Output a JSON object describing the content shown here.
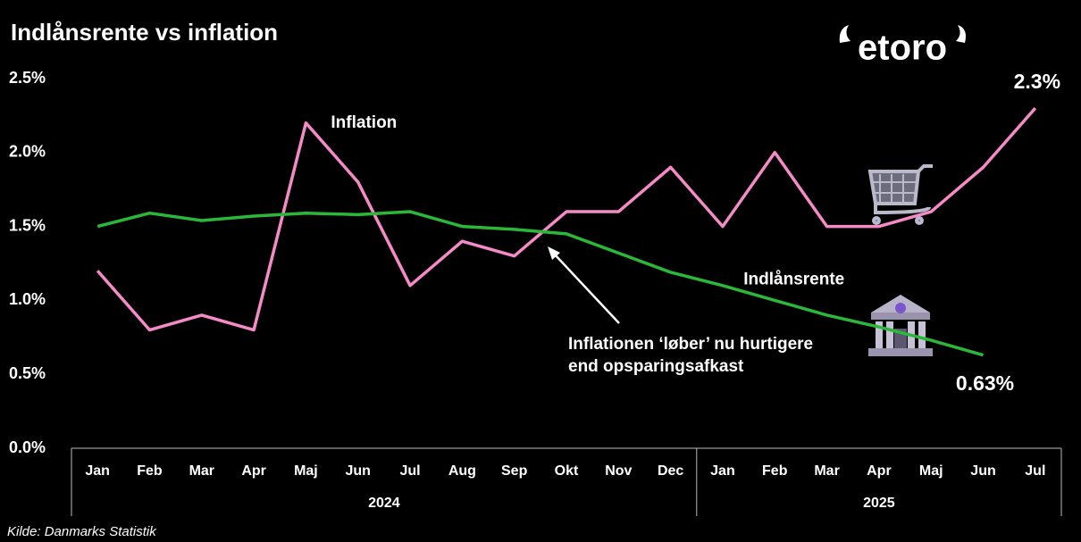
{
  "chart_data": {
    "type": "line",
    "title": "Indlånsrente vs inflation",
    "logo": "etoro",
    "source": "Kilde: Danmarks Statistik",
    "annotation": [
      "Inflationen ‘løber’ nu hurtigere",
      "end opsparingsafkast"
    ],
    "categories": [
      "Jan",
      "Feb",
      "Mar",
      "Apr",
      "Maj",
      "Jun",
      "Jul",
      "Aug",
      "Sep",
      "Okt",
      "Nov",
      "Dec",
      "Jan",
      "Feb",
      "Mar",
      "Apr",
      "Maj",
      "Jun",
      "Jul"
    ],
    "category_years": [
      "2024",
      "2024",
      "2024",
      "2024",
      "2024",
      "2024",
      "2024",
      "2024",
      "2024",
      "2024",
      "2024",
      "2024",
      "2025",
      "2025",
      "2025",
      "2025",
      "2025",
      "2025",
      "2025"
    ],
    "series": [
      {
        "name": "Inflation",
        "color": "#f48ac6",
        "values": [
          1.2,
          0.8,
          0.9,
          0.8,
          2.2,
          1.8,
          1.1,
          1.4,
          1.3,
          1.6,
          1.6,
          1.9,
          1.5,
          2.0,
          1.5,
          1.5,
          1.6,
          1.9,
          2.3
        ],
        "value_labels": [
          null,
          null,
          null,
          null,
          null,
          null,
          null,
          null,
          null,
          null,
          null,
          null,
          null,
          null,
          null,
          null,
          null,
          null,
          "2.3%"
        ]
      },
      {
        "name": "Indlånsrente",
        "color": "#2bb83a",
        "values": [
          1.5,
          1.59,
          1.54,
          1.57,
          1.59,
          1.58,
          1.6,
          1.5,
          1.48,
          1.45,
          1.32,
          1.19,
          1.1,
          1.0,
          0.9,
          0.82,
          0.73,
          0.63,
          null
        ],
        "value_labels": [
          null,
          null,
          null,
          null,
          null,
          null,
          null,
          null,
          null,
          null,
          null,
          null,
          null,
          null,
          null,
          null,
          null,
          "0.63%",
          null
        ]
      }
    ],
    "ylim": [
      0,
      2.5
    ],
    "yticks": [
      {
        "value": 0,
        "label": "0.0%"
      },
      {
        "value": 0.5,
        "label": "0.5%"
      },
      {
        "value": 1,
        "label": "1.0%"
      },
      {
        "value": 1.5,
        "label": "1.5%"
      },
      {
        "value": 2,
        "label": "2.0%"
      },
      {
        "value": 2.5,
        "label": "2.5%"
      }
    ],
    "grid": false
  }
}
